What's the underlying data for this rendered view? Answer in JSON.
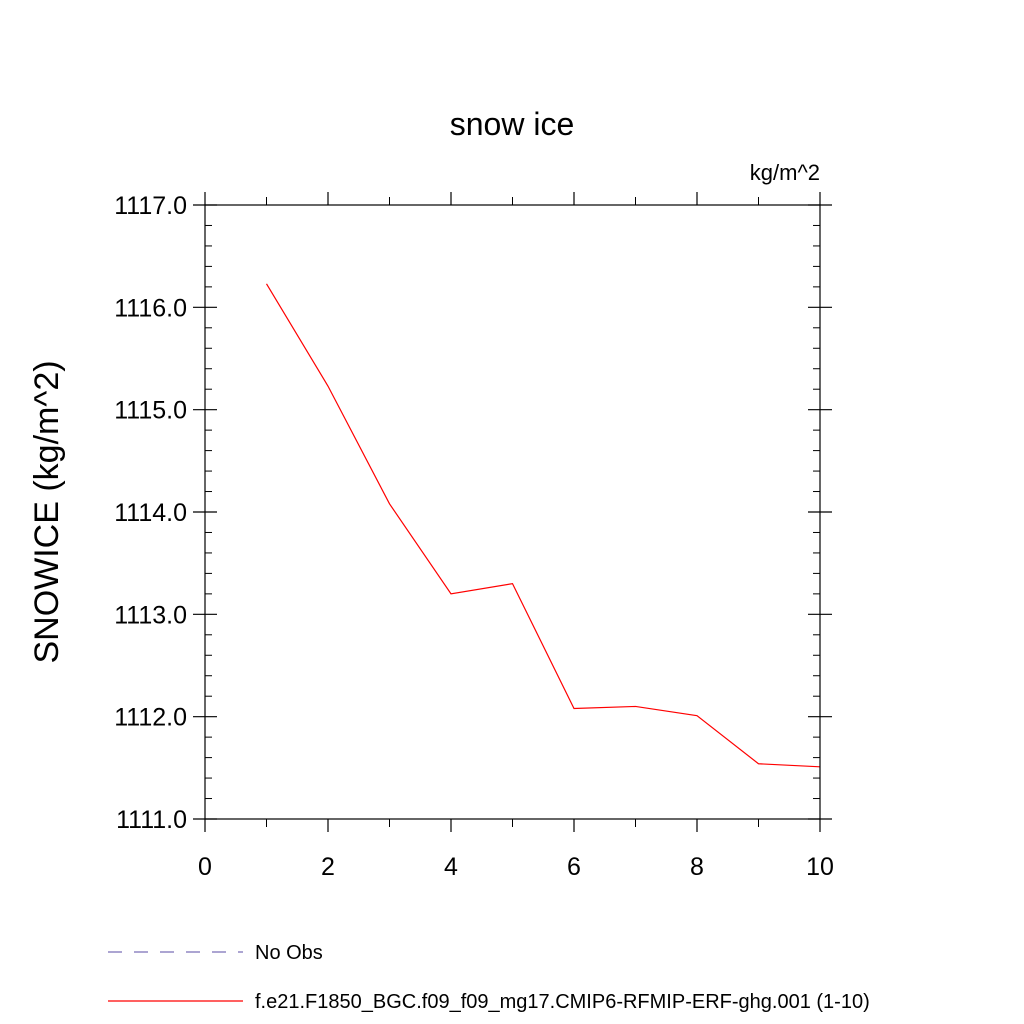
{
  "chart_data": {
    "type": "line",
    "title": "snow ice",
    "units_label": "kg/m^2",
    "ylabel": "SNOWICE  (kg/m^2)",
    "xlabel": "",
    "xlim": [
      0,
      10
    ],
    "ylim": [
      1111.0,
      1117.0
    ],
    "x_ticks": [
      0,
      2,
      4,
      6,
      8,
      10
    ],
    "x_tick_labels": [
      "0",
      "2",
      "4",
      "6",
      "8",
      "10"
    ],
    "x_minor_step": 1,
    "y_ticks": [
      1111.0,
      1112.0,
      1113.0,
      1114.0,
      1115.0,
      1116.0,
      1117.0
    ],
    "y_tick_labels": [
      "1111.0",
      "1112.0",
      "1113.0",
      "1114.0",
      "1115.0",
      "1116.0",
      "1117.0"
    ],
    "y_minor_step": 0.2,
    "grid": false,
    "legend_position": "bottom",
    "series": [
      {
        "name": "f.e21.F1850_BGC.f09_f09_mg17.CMIP6-RFMIP-ERF-ghg.001 (1-10)",
        "color": "#ff0000",
        "style": "solid",
        "x": [
          1,
          2,
          3,
          4,
          5,
          6,
          7,
          8,
          9,
          10
        ],
        "values": [
          1116.23,
          1115.23,
          1114.08,
          1113.2,
          1113.3,
          1112.08,
          1112.1,
          1112.01,
          1111.54,
          1111.51
        ]
      }
    ],
    "legend": [
      {
        "label": "No Obs",
        "color": "#7a6fb8",
        "style": "dashed"
      },
      {
        "label": "f.e21.F1850_BGC.f09_f09_mg17.CMIP6-RFMIP-ERF-ghg.001 (1-10)",
        "color": "#ff0000",
        "style": "solid"
      }
    ]
  }
}
